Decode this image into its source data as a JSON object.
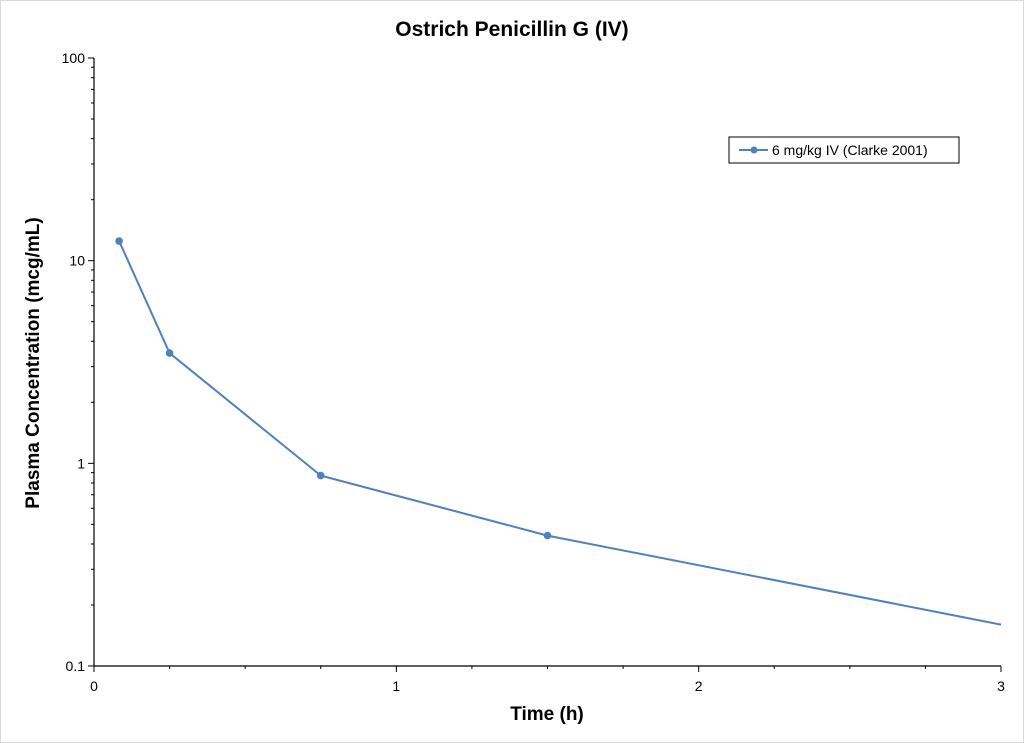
{
  "chart_data": {
    "type": "line",
    "title": "Ostrich Penicillin G (IV)",
    "xlabel": "Time (h)",
    "ylabel": "Plasma Concentration (mcg/mL)",
    "xlim": [
      0,
      3
    ],
    "ylim": [
      0.1,
      100
    ],
    "yscale": "log",
    "grid": false,
    "legend_position": "top-right",
    "x_ticks": [
      "0",
      "1",
      "2",
      "3"
    ],
    "y_ticks": [
      "0.1",
      "1",
      "10",
      "100"
    ],
    "series": [
      {
        "name": "6 mg/kg IV (Clarke 2001)",
        "color": "#4f81bd",
        "marker": "circle",
        "x": [
          0.083,
          0.25,
          0.75,
          1.5
        ],
        "y": [
          12.5,
          3.5,
          0.87,
          0.44
        ],
        "line_extension": {
          "x": 3,
          "y": 0.16
        }
      }
    ]
  }
}
